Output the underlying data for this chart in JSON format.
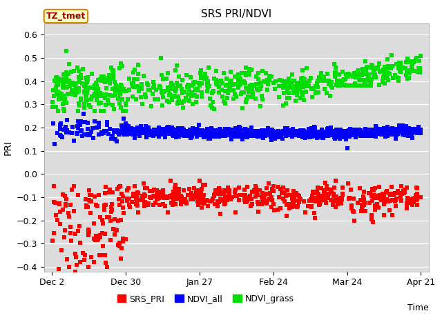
{
  "title": "SRS PRI/NDVI",
  "xlabel": "Time",
  "ylabel": "PRI",
  "ylim": [
    -0.42,
    0.65
  ],
  "plot_bg": "#dcdcdc",
  "fig_bg": "#ffffff",
  "annotation_text": "TZ_tmet",
  "annotation_bg": "#ffffc8",
  "annotation_edge": "#cc8800",
  "annotation_text_color": "#990000",
  "series": [
    "SRS_PRI",
    "NDVI_all",
    "NDVI_grass"
  ],
  "colors": [
    "#ff0000",
    "#0000ff",
    "#00dd00"
  ],
  "marker_size": 5,
  "xtick_labels": [
    "Dec 2",
    "Dec 30",
    "Jan 27",
    "Feb 24",
    "Mar 24",
    "Apr 21"
  ],
  "xtick_days": [
    0,
    28,
    56,
    84,
    112,
    140
  ],
  "yticks": [
    -0.4,
    -0.3,
    -0.2,
    -0.1,
    0.0,
    0.1,
    0.2,
    0.3,
    0.4,
    0.5,
    0.6
  ],
  "figsize": [
    6.4,
    4.8
  ],
  "dpi": 100
}
